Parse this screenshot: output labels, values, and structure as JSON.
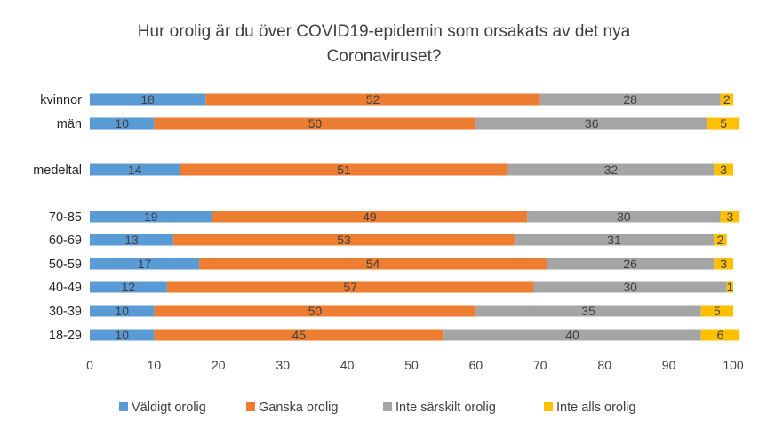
{
  "chart_data": {
    "type": "bar",
    "orientation": "horizontal",
    "stacked": true,
    "title": [
      "Hur orolig är du över COVID19-epidemin som orsakats av det nya",
      "Coronaviruset?"
    ],
    "categories": [
      "kvinnor",
      "män",
      "medeltal",
      "70-85",
      "60-69",
      "50-59",
      "40-49",
      "30-39",
      "18-29"
    ],
    "series": [
      {
        "name": "Väldigt orolig",
        "color": "#5B9BD5",
        "values": [
          18,
          10,
          14,
          19,
          13,
          17,
          12,
          10,
          10
        ]
      },
      {
        "name": "Ganska orolig",
        "color": "#ED7D31",
        "values": [
          52,
          50,
          51,
          49,
          53,
          54,
          57,
          50,
          45
        ]
      },
      {
        "name": "Inte särskilt orolig",
        "color": "#A5A5A5",
        "values": [
          28,
          36,
          32,
          30,
          31,
          26,
          30,
          35,
          40
        ]
      },
      {
        "name": "Inte alls orolig",
        "color": "#FFC000",
        "values": [
          2,
          5,
          3,
          3,
          2,
          3,
          1,
          5,
          6
        ]
      }
    ],
    "xlim": [
      0,
      100
    ],
    "xticks": [
      0,
      10,
      20,
      30,
      40,
      50,
      60,
      70,
      80,
      90,
      100
    ],
    "xlabel": "",
    "ylabel": "",
    "grid": false,
    "legend": "bottom",
    "data_labels": true
  }
}
